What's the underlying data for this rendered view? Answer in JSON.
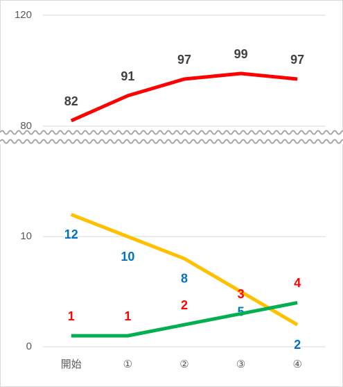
{
  "chart_data": [
    {
      "type": "line",
      "ylim": [
        80,
        120
      ],
      "yticks": [
        80,
        120
      ],
      "grid": true,
      "series": [
        {
          "color": "#ff0000",
          "label_color": "#404040",
          "values": [
            82,
            91,
            97,
            99,
            97
          ]
        }
      ]
    },
    {
      "type": "line",
      "ylim": [
        0,
        18
      ],
      "yticks": [
        0,
        10
      ],
      "grid": true,
      "categories": [
        "開始",
        "①",
        "②",
        "③",
        "④"
      ],
      "series": [
        {
          "color": "#ffc000",
          "label_color": "#0070c0",
          "label_side": "below",
          "values": [
            12,
            10,
            8,
            5,
            2
          ]
        },
        {
          "color": "#00b050",
          "label_color": "#ff0000",
          "label_side": "above",
          "values": [
            1,
            1,
            2,
            3,
            4
          ]
        }
      ]
    }
  ]
}
